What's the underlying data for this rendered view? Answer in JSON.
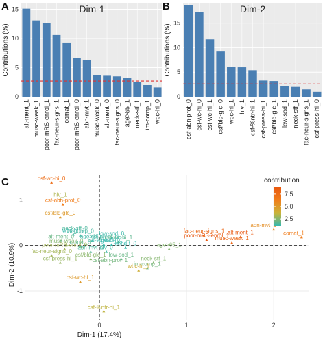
{
  "colors": {
    "bar": "#4a7fb3",
    "refline": "#e03030",
    "panel_bg": "#ebebeb",
    "grid": "#ffffff"
  },
  "colorscale": [
    "#2fb8b3",
    "#c9b43a",
    "#f07d1a",
    "#e8560e"
  ],
  "chart_data": [
    {
      "id": "A",
      "panel_label": "A",
      "type": "bar",
      "title": "Dim-1",
      "ylabel": "Contributions (%)",
      "ylim": [
        0,
        16
      ],
      "yticks": [
        0,
        5,
        10,
        15
      ],
      "refline": 2.7,
      "categories": [
        "alt-ment_1",
        "musc-weak_1",
        "poor-mRS-enrol_1",
        "fac-neur-signs_1",
        "comat_1",
        "poor-mRS-enrol_0",
        "abn-mvt_1",
        "musc-weak_0",
        "alt-ment_0",
        "fac-neur-signs_0",
        "age>65_1",
        "neck-stf_1",
        "im-comp_1",
        "wbc-hi_0"
      ],
      "values": [
        15.1,
        13.1,
        12.6,
        10.6,
        9.3,
        6.7,
        6.3,
        3.7,
        3.6,
        3.5,
        3.2,
        2.5,
        2.0,
        1.6
      ]
    },
    {
      "id": "B",
      "panel_label": "B",
      "type": "bar",
      "title": "Dim-2",
      "ylabel": "Contributions (%)",
      "ylim": [
        0,
        19
      ],
      "yticks": [
        0,
        5,
        10,
        15
      ],
      "refline": 2.6,
      "categories": [
        "csf-abn-prot_0",
        "csf-wc-hi_0",
        "csf-wc-hi_1",
        "csf/bld-glc_0",
        "wbc-hi_1",
        "hiv_1",
        "csf-%ntr-hi_1",
        "csf-press-hi_1",
        "csf/bld-glc_1",
        "low-sod_1",
        "neck-stf_1",
        "fac-neur-signs_1",
        "csf-press-hi_0"
      ],
      "values": [
        18.6,
        17.3,
        11.7,
        9.2,
        6.1,
        6.0,
        5.4,
        3.3,
        3.2,
        2.1,
        2.0,
        1.5,
        1.0
      ]
    },
    {
      "id": "C",
      "panel_label": "C",
      "type": "scatter",
      "xlabel": "Dim-1 (17.4%)",
      "ylabel": "Dim-2 (10.9%)",
      "xlim": [
        -0.85,
        2.4
      ],
      "ylim": [
        -1.65,
        1.55
      ],
      "xticks": [
        0,
        1,
        2
      ],
      "yticks": [
        -1,
        0,
        1
      ],
      "legend_title": "contribution",
      "legend_ticks": [
        2.5,
        5.0,
        7.5
      ],
      "legend_range": [
        1,
        9
      ],
      "legend_position": "top-right",
      "points": [
        {
          "label": "csf-wc-hi_0",
          "x": -0.55,
          "y": 1.38,
          "c": 7.5
        },
        {
          "label": "hiv_1",
          "x": -0.45,
          "y": 1.02,
          "c": 3.2
        },
        {
          "label": "csf-abn-prot_0",
          "x": -0.42,
          "y": 0.9,
          "c": 6.5
        },
        {
          "label": "csf/bld-glc_0",
          "x": -0.45,
          "y": 0.62,
          "c": 5.0
        },
        {
          "label": "neck-stf_0",
          "x": -0.28,
          "y": 0.28,
          "c": 1.5
        },
        {
          "label": "wbc-hi_0",
          "x": -0.3,
          "y": 0.24,
          "c": 1.2
        },
        {
          "label": "im-comp_0",
          "x": -0.22,
          "y": 0.22,
          "c": 1.4
        },
        {
          "label": "alt-ment_0",
          "x": -0.44,
          "y": 0.1,
          "c": 2.0
        },
        {
          "label": "age>65_0",
          "x": -0.08,
          "y": 0.1,
          "c": 1.3
        },
        {
          "label": "low-sod_0",
          "x": 0.14,
          "y": 0.17,
          "c": 1.2
        },
        {
          "label": "csf-press-hi_0",
          "x": 0.1,
          "y": 0.1,
          "c": 1.3
        },
        {
          "label": "csf-wc-hi_1",
          "x": 0.22,
          "y": 0.08,
          "c": 1.8
        },
        {
          "label": "csf-%ntr-hi_0",
          "x": 0.05,
          "y": 0.02,
          "c": 1.2
        },
        {
          "label": "gend-f_1",
          "x": 0.14,
          "y": 0.02,
          "c": 1.1
        },
        {
          "label": "musc-weak_0",
          "x": -0.38,
          "y": 0.0,
          "c": 2.5
        },
        {
          "label": "comat_0",
          "x": -0.22,
          "y": -0.02,
          "c": 1.8
        },
        {
          "label": "gend-f_0",
          "x": 0.3,
          "y": -0.05,
          "c": 1.1
        },
        {
          "label": "poor-mRS-enrol_0",
          "x": -0.4,
          "y": -0.08,
          "c": 3.0
        },
        {
          "label": "abn-mvt_0",
          "x": -0.1,
          "y": -0.14,
          "c": 1.5
        },
        {
          "label": "hiv_0",
          "x": 0.08,
          "y": -0.14,
          "c": 1.3
        },
        {
          "label": "age>65_1",
          "x": 0.8,
          "y": -0.08,
          "c": 2.5
        },
        {
          "label": "fac-neur-signs_0",
          "x": -0.55,
          "y": -0.22,
          "c": 3.0
        },
        {
          "label": "csf/bld-glc_1",
          "x": -0.1,
          "y": -0.3,
          "c": 2.6
        },
        {
          "label": "low-sod_1",
          "x": 0.25,
          "y": -0.3,
          "c": 2.0
        },
        {
          "label": "csf-press-hi_1",
          "x": -0.45,
          "y": -0.38,
          "c": 2.8
        },
        {
          "label": "csf-abn-prot_1",
          "x": 0.12,
          "y": -0.42,
          "c": 2.2
        },
        {
          "label": "neck-stf_1",
          "x": 0.62,
          "y": -0.38,
          "c": 2.5
        },
        {
          "label": "im-comp_1",
          "x": 0.55,
          "y": -0.5,
          "c": 2.2
        },
        {
          "label": "wbc-hi_1",
          "x": 0.45,
          "y": -0.55,
          "c": 4.0
        },
        {
          "label": "csf-wc-hi_1",
          "x": -0.22,
          "y": -0.8,
          "c": 5.0
        },
        {
          "label": "csf-%ntr-hi_1",
          "x": 0.05,
          "y": -1.45,
          "c": 3.5
        },
        {
          "label": "fac-neur-signs_1",
          "x": 1.2,
          "y": 0.22,
          "c": 8.0
        },
        {
          "label": "poor-mRS-enrol_1",
          "x": 1.23,
          "y": 0.12,
          "c": 9.0
        },
        {
          "label": "alt-ment_1",
          "x": 1.62,
          "y": 0.19,
          "c": 9.0
        },
        {
          "label": "musc-weak_1",
          "x": 1.52,
          "y": 0.06,
          "c": 8.0
        },
        {
          "label": "abn-mvt_1",
          "x": 2.0,
          "y": 0.35,
          "c": 5.5
        },
        {
          "label": "comat_1",
          "x": 2.32,
          "y": 0.18,
          "c": 6.5
        }
      ]
    }
  ]
}
